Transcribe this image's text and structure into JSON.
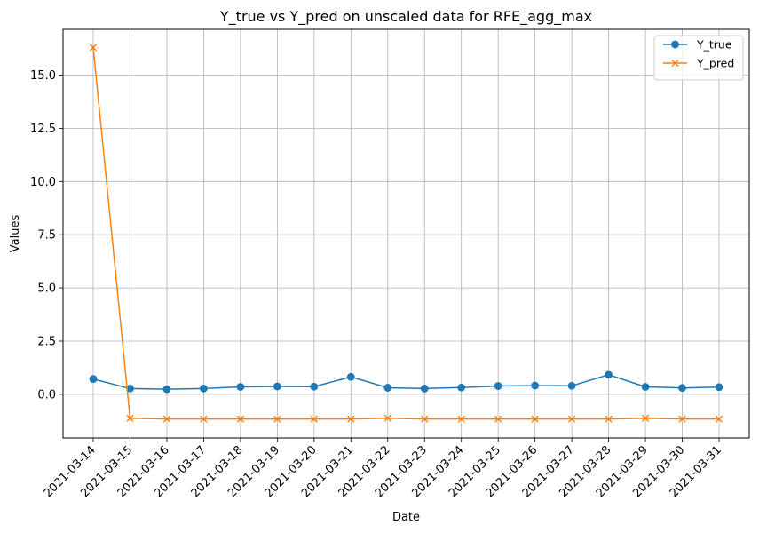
{
  "chart_data": {
    "type": "line",
    "title": "Y_true vs Y_pred on unscaled data for RFE_agg_max",
    "xlabel": "Date",
    "ylabel": "Values",
    "categories": [
      "2021-03-14",
      "2021-03-15",
      "2021-03-16",
      "2021-03-17",
      "2021-03-18",
      "2021-03-19",
      "2021-03-20",
      "2021-03-21",
      "2021-03-22",
      "2021-03-23",
      "2021-03-24",
      "2021-03-25",
      "2021-03-26",
      "2021-03-27",
      "2021-03-28",
      "2021-03-29",
      "2021-03-30",
      "2021-03-31"
    ],
    "yticks": [
      "0.0",
      "2.5",
      "5.0",
      "7.5",
      "10.0",
      "12.5",
      "15.0"
    ],
    "ylim": [
      -2.05,
      17.15
    ],
    "grid": true,
    "legend_position": "top-right",
    "series": [
      {
        "name": "Y_true",
        "marker": "circle",
        "color": "#1f77b4",
        "values": [
          0.72,
          0.27,
          0.24,
          0.27,
          0.35,
          0.37,
          0.36,
          0.82,
          0.31,
          0.27,
          0.32,
          0.39,
          0.41,
          0.4,
          0.92,
          0.35,
          0.3,
          0.34
        ]
      },
      {
        "name": "Y_pred",
        "marker": "x",
        "color": "#ff7f0e",
        "values": [
          16.3,
          -1.12,
          -1.16,
          -1.16,
          -1.16,
          -1.16,
          -1.16,
          -1.16,
          -1.12,
          -1.16,
          -1.16,
          -1.16,
          -1.16,
          -1.16,
          -1.16,
          -1.12,
          -1.16,
          -1.16
        ]
      }
    ]
  }
}
